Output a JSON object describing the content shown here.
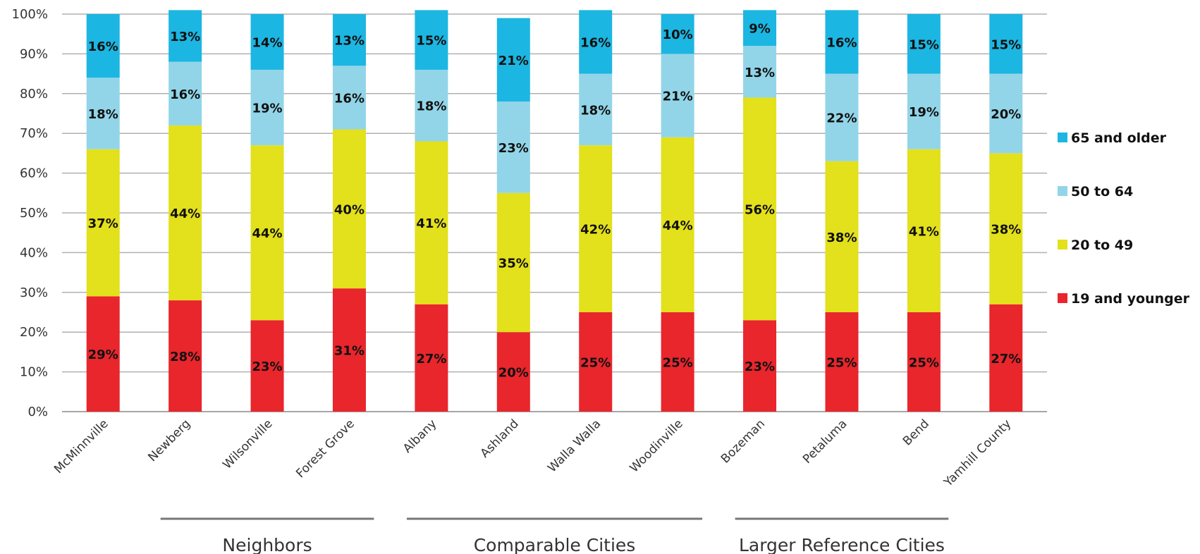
{
  "chart_data": {
    "type": "bar",
    "stacked": true,
    "percent": true,
    "title": "",
    "xlabel": "",
    "ylabel": "",
    "ylim": [
      0,
      100
    ],
    "yticks": [
      "0%",
      "10%",
      "20%",
      "30%",
      "40%",
      "50%",
      "60%",
      "70%",
      "80%",
      "90%",
      "100%"
    ],
    "grid": true,
    "legend_position": "right",
    "categories": [
      "McMinnville",
      "Newberg",
      "Wilsonville",
      "Forest Grove",
      "Albany",
      "Ashland",
      "Walla Walla",
      "Woodinville",
      "Bozeman",
      "Petaluma",
      "Bend",
      "Yamhill County"
    ],
    "series": [
      {
        "name": "19 and younger",
        "color": "#e8262c",
        "values": [
          29,
          28,
          23,
          31,
          27,
          20,
          25,
          25,
          23,
          25,
          25,
          27
        ],
        "labels": [
          "29%",
          "28%",
          "23%",
          "31%",
          "27%",
          "20%",
          "25%",
          "25%",
          "23%",
          "25%",
          "25%",
          "27%"
        ]
      },
      {
        "name": "20 to 49",
        "color": "#e3e01c",
        "values": [
          37,
          44,
          44,
          40,
          41,
          35,
          42,
          44,
          56,
          38,
          41,
          38
        ],
        "labels": [
          "37%",
          "44%",
          "44%",
          "40%",
          "41%",
          "35%",
          "42%",
          "44%",
          "56%",
          "38%",
          "41%",
          "38%"
        ]
      },
      {
        "name": "50 to 64",
        "color": "#92d5e8",
        "values": [
          18,
          16,
          19,
          16,
          18,
          23,
          18,
          21,
          13,
          22,
          19,
          20
        ],
        "labels": [
          "18%",
          "16%",
          "19%",
          "16%",
          "18%",
          "23%",
          "18%",
          "21%",
          "13%",
          "22%",
          "19%",
          "20%"
        ]
      },
      {
        "name": "65 and older",
        "color": "#1cb6e2",
        "values": [
          16,
          13,
          14,
          13,
          15,
          21,
          16,
          10,
          9,
          16,
          15,
          15
        ],
        "labels": [
          "16%",
          "13%",
          "14%",
          "13%",
          "15%",
          "21%",
          "16%",
          "10%",
          "9%",
          "16%",
          "15%",
          "15%"
        ]
      }
    ],
    "legend_order": [
      "65 and older",
      "50 to 64",
      "20 to 49",
      "19 and younger"
    ],
    "groups": [
      {
        "label": "Neighbors",
        "from": 1,
        "to": 3
      },
      {
        "label": "Comparable Cities",
        "from": 4,
        "to": 7
      },
      {
        "label": "Larger Reference Cities",
        "from": 8,
        "to": 10
      }
    ]
  },
  "colors": {
    "grid": "#b0b0b0",
    "axis": "#888888",
    "group_line": "#777777"
  }
}
